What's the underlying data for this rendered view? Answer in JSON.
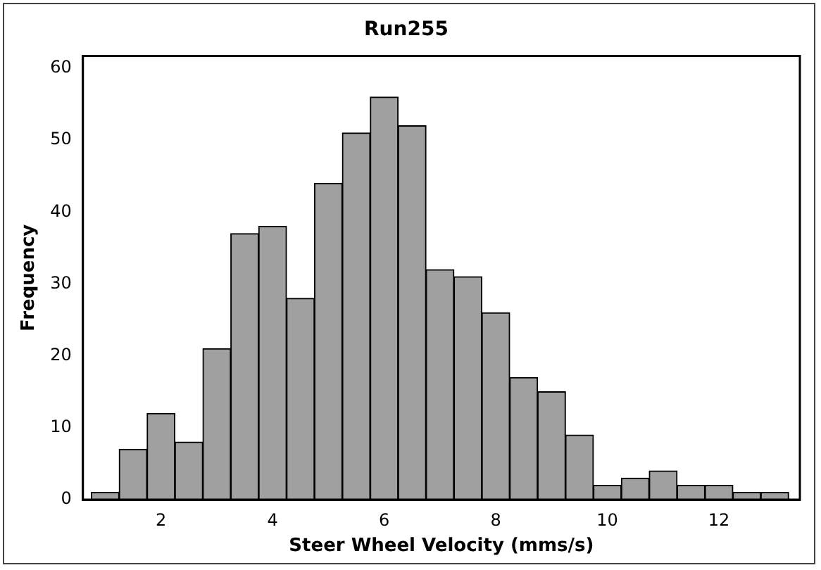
{
  "chart_data": {
    "type": "histogram",
    "title": "Run255",
    "xlabel": "Steer Wheel Velocity (mms/s)",
    "ylabel": "Frequency",
    "bins": [
      0.75,
      1.25,
      1.75,
      2.25,
      2.75,
      3.25,
      3.75,
      4.25,
      4.75,
      5.25,
      5.75,
      6.25,
      6.75,
      7.25,
      7.75,
      8.25,
      8.75,
      9.25,
      9.75,
      10.25,
      10.75,
      11.25,
      11.75,
      12.25,
      12.75,
      13.25
    ],
    "values": [
      1,
      7,
      12,
      8,
      21,
      37,
      38,
      28,
      44,
      51,
      56,
      52,
      32,
      31,
      26,
      17,
      15,
      9,
      2,
      3,
      4,
      2,
      2,
      1,
      1
    ],
    "color": "#a0a0a0",
    "xlim": [
      0.6,
      13.45
    ],
    "ylim": [
      0,
      61.7
    ],
    "xticks": [
      2,
      4,
      6,
      8,
      10,
      12
    ],
    "yticks": [
      0,
      10,
      20,
      30,
      40,
      50,
      60
    ],
    "grid": false,
    "legend": false
  }
}
